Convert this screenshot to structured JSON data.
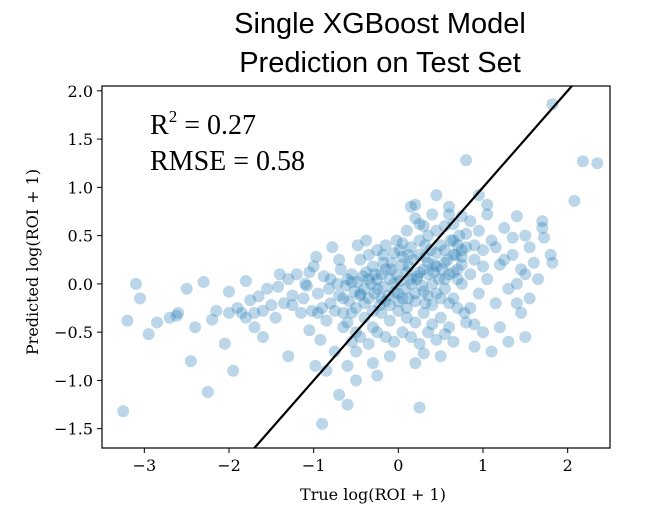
{
  "chart_data": {
    "type": "scatter",
    "title_lines": [
      "Single XGBoost Model",
      "Prediction on Test Set"
    ],
    "xlabel": "True log(ROI + 1)",
    "ylabel": "Predicted log(ROI + 1)",
    "xlim": [
      -3.5,
      2.5
    ],
    "ylim": [
      -1.7,
      2.05
    ],
    "xticks": [
      -3,
      -2,
      -1,
      0,
      1,
      2
    ],
    "xtick_labels": [
      "−3",
      "−2",
      "−1",
      "0",
      "1",
      "2"
    ],
    "yticks": [
      -1.5,
      -1.0,
      -0.5,
      0.0,
      0.5,
      1.0,
      1.5,
      2.0
    ],
    "ytick_labels": [
      "−1.5",
      "−1.0",
      "−0.5",
      "0.0",
      "0.5",
      "1.0",
      "1.5",
      "2.0"
    ],
    "grid": false,
    "point_color": "#1f77b4",
    "point_opacity": 0.3,
    "annotations": {
      "r2_prefix": "R",
      "r2_sup": "2",
      "r2_value": " = 0.27",
      "rmse": "RMSE = 0.58"
    },
    "reference_line": {
      "slope": 1,
      "intercept": 0,
      "color": "#000000"
    },
    "points": [
      [
        -3.25,
        -1.32
      ],
      [
        -3.2,
        -0.38
      ],
      [
        -3.1,
        0.0
      ],
      [
        -3.05,
        -0.15
      ],
      [
        -2.95,
        -0.52
      ],
      [
        -2.85,
        -0.4
      ],
      [
        -2.7,
        -0.35
      ],
      [
        -2.62,
        -0.33
      ],
      [
        -2.5,
        -0.05
      ],
      [
        -2.45,
        -0.8
      ],
      [
        -2.4,
        -0.45
      ],
      [
        -2.3,
        0.02
      ],
      [
        -2.25,
        -1.12
      ],
      [
        -2.2,
        -0.37
      ],
      [
        -2.15,
        -0.28
      ],
      [
        -2.05,
        -0.62
      ],
      [
        -2.0,
        -0.08
      ],
      [
        -1.95,
        -0.9
      ],
      [
        -1.9,
        -0.25
      ],
      [
        -1.85,
        -0.3
      ],
      [
        -1.8,
        -0.35
      ],
      [
        -1.75,
        -0.17
      ],
      [
        -1.7,
        -0.45
      ],
      [
        -1.65,
        -0.13
      ],
      [
        -1.6,
        -0.55
      ],
      [
        -1.55,
        -0.05
      ],
      [
        -1.5,
        -0.22
      ],
      [
        -1.45,
        -0.35
      ],
      [
        -1.42,
        -0.03
      ],
      [
        -1.35,
        -0.2
      ],
      [
        -1.3,
        -0.75
      ],
      [
        -1.25,
        -0.12
      ],
      [
        -1.2,
        0.1
      ],
      [
        -1.15,
        -0.3
      ],
      [
        -1.12,
        -0.15
      ],
      [
        -1.08,
        -0.02
      ],
      [
        -1.05,
        -0.48
      ],
      [
        -1.0,
        0.18
      ],
      [
        -0.98,
        -0.85
      ],
      [
        -0.95,
        -0.1
      ],
      [
        -0.92,
        -0.58
      ],
      [
        -0.9,
        -0.25
      ],
      [
        -0.88,
        0.08
      ],
      [
        -0.85,
        -0.38
      ],
      [
        -0.82,
        -0.05
      ],
      [
        -0.8,
        -0.2
      ],
      [
        -0.78,
        0.38
      ],
      [
        -0.75,
        -0.7
      ],
      [
        -0.72,
        0.0
      ],
      [
        -0.7,
        -0.12
      ],
      [
        -0.68,
        0.15
      ],
      [
        -0.65,
        -0.3
      ],
      [
        -0.62,
        -0.02
      ],
      [
        -0.6,
        0.05
      ],
      [
        -0.58,
        -0.18
      ],
      [
        -0.55,
        0.1
      ],
      [
        -0.52,
        -0.08
      ],
      [
        -0.5,
        -0.25
      ],
      [
        -0.48,
        0.02
      ],
      [
        -0.45,
        -0.12
      ],
      [
        -0.42,
        0.08
      ],
      [
        -0.4,
        -0.05
      ],
      [
        -0.38,
        0.12
      ],
      [
        -0.35,
        -0.15
      ],
      [
        -0.32,
        0.0
      ],
      [
        -0.3,
        0.18
      ],
      [
        -0.28,
        -0.1
      ],
      [
        -0.25,
        0.05
      ],
      [
        -0.22,
        -0.22
      ],
      [
        -0.2,
        0.1
      ],
      [
        -0.18,
        -0.03
      ],
      [
        -0.15,
        0.15
      ],
      [
        -0.12,
        -0.12
      ],
      [
        -0.1,
        0.05
      ],
      [
        -0.08,
        0.22
      ],
      [
        -0.05,
        -0.08
      ],
      [
        -0.02,
        0.1
      ],
      [
        0.0,
        -0.18
      ],
      [
        0.02,
        0.03
      ],
      [
        0.05,
        0.2
      ],
      [
        0.08,
        -0.05
      ],
      [
        0.1,
        0.12
      ],
      [
        0.12,
        -0.15
      ],
      [
        0.15,
        0.05
      ],
      [
        0.18,
        0.25
      ],
      [
        0.2,
        -0.1
      ],
      [
        0.22,
        0.08
      ],
      [
        0.25,
        0.3
      ],
      [
        0.28,
        -0.02
      ],
      [
        0.3,
        0.15
      ],
      [
        0.32,
        -0.2
      ],
      [
        0.35,
        0.1
      ],
      [
        0.38,
        0.35
      ],
      [
        0.4,
        0.0
      ],
      [
        0.42,
        0.2
      ],
      [
        0.45,
        -0.1
      ],
      [
        0.48,
        0.05
      ],
      [
        0.5,
        0.4
      ],
      [
        0.52,
        0.15
      ],
      [
        0.55,
        -0.05
      ],
      [
        0.58,
        0.25
      ],
      [
        0.6,
        0.1
      ],
      [
        0.62,
        0.45
      ],
      [
        0.65,
        -0.15
      ],
      [
        0.68,
        0.3
      ],
      [
        0.7,
        0.05
      ],
      [
        0.72,
        0.5
      ],
      [
        0.75,
        0.2
      ],
      [
        0.78,
        -0.3
      ],
      [
        0.8,
        0.38
      ],
      [
        -0.6,
        -0.4
      ],
      [
        -0.5,
        -0.5
      ],
      [
        -0.4,
        -0.35
      ],
      [
        -0.3,
        -0.45
      ],
      [
        -0.2,
        -0.3
      ],
      [
        -0.1,
        -0.38
      ],
      [
        0.0,
        -0.28
      ],
      [
        0.1,
        -0.35
      ],
      [
        0.2,
        -0.4
      ],
      [
        0.3,
        -0.3
      ],
      [
        0.4,
        -0.42
      ],
      [
        0.5,
        -0.35
      ],
      [
        0.6,
        -0.45
      ],
      [
        0.7,
        -0.25
      ],
      [
        0.8,
        -0.4
      ],
      [
        -0.45,
        0.25
      ],
      [
        -0.35,
        0.3
      ],
      [
        -0.25,
        0.35
      ],
      [
        -0.15,
        0.4
      ],
      [
        -0.05,
        0.32
      ],
      [
        0.05,
        0.42
      ],
      [
        0.15,
        0.38
      ],
      [
        0.25,
        0.45
      ],
      [
        0.35,
        0.5
      ],
      [
        0.45,
        0.55
      ],
      [
        0.55,
        0.6
      ],
      [
        0.65,
        0.62
      ],
      [
        0.75,
        0.7
      ],
      [
        0.85,
        0.65
      ],
      [
        0.3,
        0.6
      ],
      [
        0.1,
        0.55
      ],
      [
        0.2,
        0.68
      ],
      [
        0.4,
        0.72
      ],
      [
        0.15,
        0.8
      ],
      [
        0.25,
        0.62
      ],
      [
        -0.7,
        0.25
      ],
      [
        -0.65,
        -0.45
      ],
      [
        -0.55,
        -0.6
      ],
      [
        -0.45,
        -0.55
      ],
      [
        -0.35,
        -0.62
      ],
      [
        -0.25,
        -0.5
      ],
      [
        -0.15,
        -0.55
      ],
      [
        -0.05,
        -0.6
      ],
      [
        0.05,
        -0.5
      ],
      [
        0.15,
        -0.55
      ],
      [
        0.25,
        -0.62
      ],
      [
        0.35,
        -0.5
      ],
      [
        0.45,
        -0.58
      ],
      [
        0.55,
        -0.52
      ],
      [
        0.65,
        -0.6
      ],
      [
        0.85,
        0.1
      ],
      [
        0.9,
        0.25
      ],
      [
        0.95,
        -0.1
      ],
      [
        1.0,
        0.35
      ],
      [
        1.05,
        0.05
      ],
      [
        1.1,
        0.45
      ],
      [
        1.15,
        -0.2
      ],
      [
        1.2,
        0.2
      ],
      [
        1.25,
        0.58
      ],
      [
        1.3,
        -0.05
      ],
      [
        1.35,
        0.3
      ],
      [
        1.4,
        0.7
      ],
      [
        1.45,
        -0.3
      ],
      [
        1.5,
        0.1
      ],
      [
        1.2,
        -0.45
      ],
      [
        1.0,
        -0.5
      ],
      [
        0.9,
        -0.65
      ],
      [
        1.1,
        -0.7
      ],
      [
        1.3,
        -0.6
      ],
      [
        1.5,
        -0.55
      ],
      [
        0.95,
        0.55
      ],
      [
        1.05,
        0.72
      ],
      [
        1.15,
        0.38
      ],
      [
        1.25,
        0.25
      ],
      [
        1.35,
        0.48
      ],
      [
        0.85,
        -0.25
      ],
      [
        0.9,
        -0.42
      ],
      [
        1.4,
        0.0
      ],
      [
        1.45,
        0.15
      ],
      [
        1.55,
        0.38
      ],
      [
        1.6,
        0.22
      ],
      [
        1.55,
        -0.15
      ],
      [
        1.65,
        0.05
      ],
      [
        1.4,
        -0.2
      ],
      [
        1.5,
        0.5
      ],
      [
        0.8,
        1.28
      ],
      [
        1.82,
        1.86
      ],
      [
        2.08,
        0.86
      ],
      [
        2.18,
        1.27
      ],
      [
        2.35,
        1.25
      ],
      [
        1.7,
        0.65
      ],
      [
        1.72,
        0.48
      ],
      [
        1.8,
        0.3
      ],
      [
        1.82,
        0.22
      ],
      [
        1.7,
        0.58
      ],
      [
        0.2,
        0.82
      ],
      [
        0.45,
        0.92
      ],
      [
        0.6,
        0.8
      ],
      [
        0.95,
        0.92
      ],
      [
        1.05,
        0.82
      ],
      [
        0.65,
        0.3
      ],
      [
        0.7,
        0.15
      ],
      [
        0.75,
        0.0
      ],
      [
        0.6,
        -0.2
      ],
      [
        0.55,
        0.35
      ],
      [
        0.3,
        -0.72
      ],
      [
        0.2,
        -0.82
      ],
      [
        -0.1,
        -0.75
      ],
      [
        -0.3,
        -0.82
      ],
      [
        0.5,
        -0.75
      ],
      [
        -0.5,
        -1.0
      ],
      [
        -0.55,
        -0.3
      ],
      [
        -0.5,
        -0.7
      ],
      [
        -0.85,
        -0.9
      ],
      [
        -0.6,
        -0.85
      ],
      [
        -0.9,
        -1.45
      ],
      [
        -0.7,
        -1.15
      ],
      [
        -0.6,
        -1.25
      ],
      [
        0.25,
        -1.28
      ],
      [
        -0.25,
        -0.95
      ],
      [
        0.05,
        0.28
      ],
      [
        -0.02,
        0.45
      ],
      [
        0.12,
        0.18
      ],
      [
        -0.18,
        0.22
      ],
      [
        0.32,
        0.28
      ],
      [
        -0.4,
        -0.2
      ],
      [
        -0.3,
        -0.28
      ],
      [
        -0.2,
        -0.15
      ],
      [
        -0.1,
        -0.22
      ],
      [
        0.0,
        -0.1
      ],
      [
        0.1,
        -0.25
      ],
      [
        0.2,
        -0.18
      ],
      [
        0.3,
        -0.08
      ],
      [
        0.4,
        -0.22
      ],
      [
        0.5,
        -0.15
      ],
      [
        -0.65,
        -0.15
      ],
      [
        -0.55,
        0.02
      ],
      [
        -0.45,
        -0.1
      ],
      [
        -0.35,
        0.05
      ],
      [
        -0.25,
        -0.05
      ],
      [
        -0.15,
        -0.18
      ],
      [
        -0.05,
        0.0
      ],
      [
        0.05,
        -0.15
      ],
      [
        0.15,
        0.0
      ],
      [
        0.25,
        0.12
      ],
      [
        0.35,
        -0.12
      ],
      [
        0.45,
        0.18
      ],
      [
        0.55,
        0.05
      ],
      [
        0.65,
        0.12
      ],
      [
        0.75,
        0.28
      ],
      [
        -0.8,
        0.05
      ],
      [
        -0.75,
        -0.28
      ],
      [
        -1.1,
        0.0
      ],
      [
        -1.02,
        -0.28
      ],
      [
        -0.95,
        -0.3
      ],
      [
        -1.4,
        0.1
      ],
      [
        -1.3,
        0.05
      ],
      [
        -1.25,
        -0.22
      ],
      [
        -1.05,
        0.12
      ],
      [
        -0.97,
        0.28
      ],
      [
        -1.6,
        -0.28
      ],
      [
        -1.7,
        -0.3
      ],
      [
        -2.6,
        -0.3
      ],
      [
        -2.0,
        -0.3
      ],
      [
        -1.8,
        0.03
      ],
      [
        0.6,
        0.72
      ],
      [
        0.7,
        0.4
      ],
      [
        0.8,
        0.52
      ],
      [
        0.9,
        0.4
      ],
      [
        1.0,
        0.18
      ],
      [
        0.35,
        0.22
      ],
      [
        0.45,
        0.32
      ],
      [
        0.55,
        0.22
      ],
      [
        0.65,
        0.45
      ],
      [
        0.75,
        0.35
      ],
      [
        -0.48,
        0.4
      ],
      [
        -0.38,
        0.45
      ],
      [
        -0.28,
        0.1
      ],
      [
        -0.18,
        0.3
      ],
      [
        -0.08,
        0.15
      ],
      [
        0.02,
        0.35
      ],
      [
        0.12,
        0.3
      ],
      [
        0.22,
        0.05
      ],
      [
        0.32,
        0.4
      ],
      [
        0.42,
        0.12
      ]
    ]
  }
}
